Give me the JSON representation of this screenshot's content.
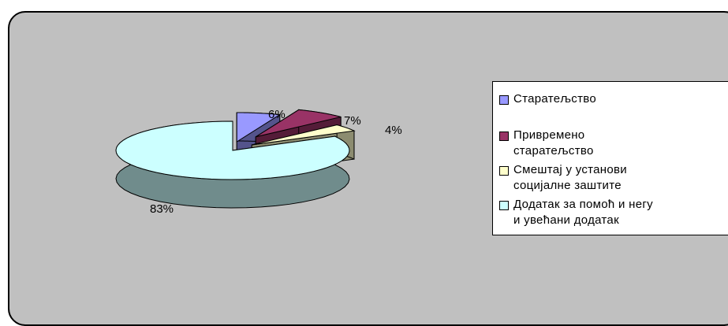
{
  "chart_data": {
    "type": "pie",
    "style": "3d-exploded",
    "slices": [
      {
        "label": "Старатељство",
        "value": 6,
        "display": "6%",
        "color": "#9999ff"
      },
      {
        "label": "Привремено старатељство",
        "value": 7,
        "display": "7%",
        "color": "#993366"
      },
      {
        "label": "Смештај у установи социјалне заштите",
        "value": 4,
        "display": "4%",
        "color": "#ffffcc"
      },
      {
        "label": "Додатак за помоћ и негу и увећани додатак",
        "value": 83,
        "display": "83%",
        "color": "#ccffff"
      }
    ],
    "legend": {
      "placement": "right",
      "entries": [
        {
          "lines": [
            "Старатељство"
          ]
        },
        {
          "lines": [
            "Привремено",
            "старатељство"
          ]
        },
        {
          "lines": [
            "Смештај у установи",
            "социјалне заштите"
          ]
        },
        {
          "lines": [
            "Додатак за помоћ и негу",
            "и увећани додатак"
          ]
        }
      ]
    },
    "plot_background": "#c0c0c0",
    "legend_background": "#ffffff"
  }
}
